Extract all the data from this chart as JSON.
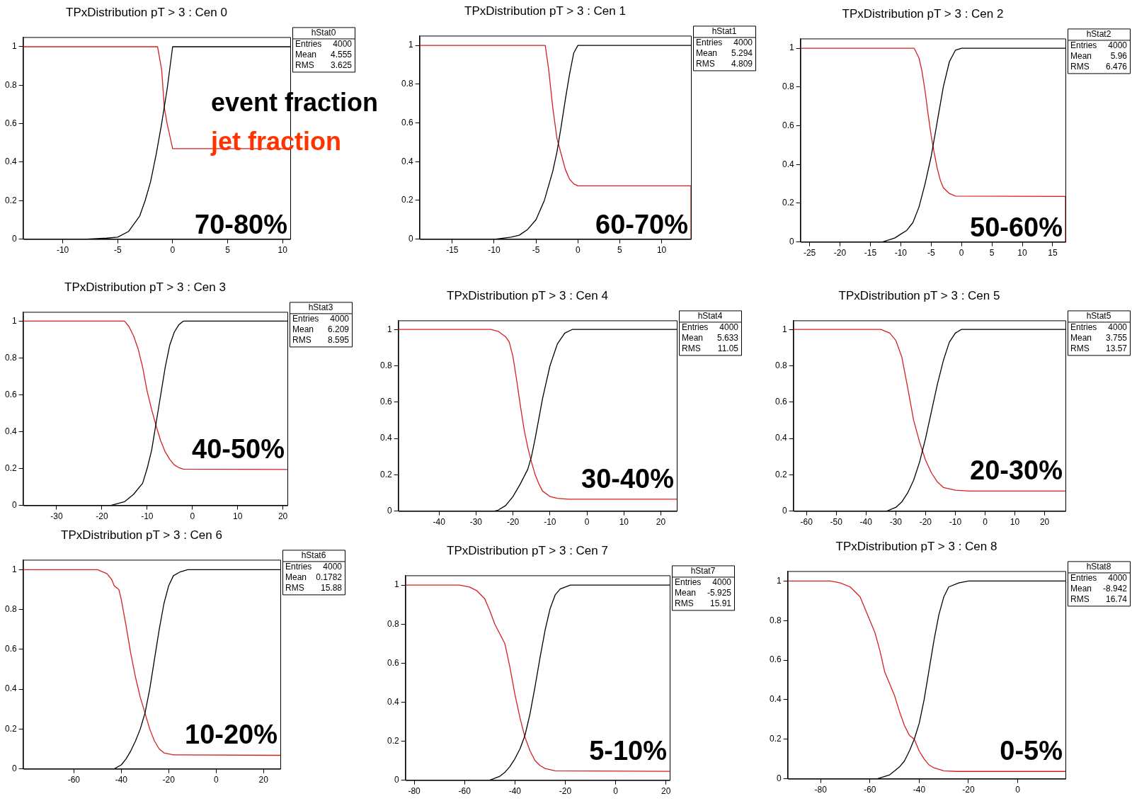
{
  "chart_data": [
    {
      "type": "line",
      "title": "TPxDistribution pT > 3 : Cen 0",
      "xlim": [
        -13.6,
        10.7
      ],
      "xticks": [
        -10,
        -5,
        0,
        5,
        10
      ],
      "ylim": [
        0,
        1.05
      ],
      "yticks": [
        0,
        0.2,
        0.4,
        0.6,
        0.8,
        1
      ],
      "annotations": [
        "hStat0",
        "Entries",
        "4000",
        "Mean",
        "4.555",
        "RMS",
        "3.625",
        "70-80%"
      ],
      "series": [
        {
          "name": "event fraction",
          "color": "#000000",
          "x": [
            -13.6,
            -7.8,
            -6,
            -5,
            -4,
            -3,
            -2.5,
            -2,
            -1.5,
            -1,
            -0.5,
            0,
            10.7
          ],
          "values": [
            0,
            0,
            0.005,
            0.01,
            0.04,
            0.12,
            0.2,
            0.3,
            0.44,
            0.6,
            0.78,
            1,
            1
          ]
        },
        {
          "name": "jet fraction",
          "color": "#d42020",
          "x": [
            -13.6,
            -1.37,
            -1,
            -0.75,
            -0.5,
            0,
            10.7
          ],
          "values": [
            1,
            1,
            0.88,
            0.68,
            0.6,
            0.47,
            0.47
          ]
        }
      ]
    },
    {
      "type": "line",
      "title": "TPxDistribution pT > 3 : Cen 1",
      "xlim": [
        -18.9,
        13.5
      ],
      "xticks": [
        -15,
        -10,
        -5,
        0,
        5,
        10
      ],
      "ylim": [
        0,
        1.05
      ],
      "yticks": [
        0,
        0.2,
        0.4,
        0.6,
        0.8,
        1
      ],
      "annotations": [
        "hStat1",
        "Entries",
        "4000",
        "Mean",
        "5.294",
        "RMS",
        "4.809",
        "60-70%"
      ],
      "series": [
        {
          "color": "#000000",
          "x": [
            -18.9,
            -9.8,
            -8,
            -7,
            -6,
            -5,
            -4,
            -3,
            -2.5,
            -2,
            -1.5,
            -1,
            -0.5,
            0,
            13.5
          ],
          "values": [
            0,
            0,
            0.01,
            0.02,
            0.05,
            0.1,
            0.2,
            0.35,
            0.45,
            0.58,
            0.72,
            0.85,
            0.96,
            1,
            1
          ]
        },
        {
          "color": "#d42020",
          "x": [
            -18.9,
            -3.9,
            -3.5,
            -3,
            -2.5,
            -2,
            -1.5,
            -1,
            -0.5,
            0,
            13.5,
            13.5
          ],
          "values": [
            1,
            1,
            0.88,
            0.68,
            0.52,
            0.44,
            0.36,
            0.31,
            0.285,
            0.275,
            0.275,
            0
          ]
        }
      ]
    },
    {
      "type": "line",
      "title": "TPxDistribution pT > 3 : Cen 2",
      "xlim": [
        -26.5,
        17.1
      ],
      "xticks": [
        -25,
        -20,
        -15,
        -10,
        -5,
        0,
        5,
        10,
        15
      ],
      "ylim": [
        0,
        1.05
      ],
      "yticks": [
        0,
        0.2,
        0.4,
        0.6,
        0.8,
        1
      ],
      "annotations": [
        "hStat2",
        "Entries",
        "4000",
        "Mean",
        "5.96",
        "RMS",
        "6.476",
        "50-60%"
      ],
      "series": [
        {
          "color": "#000000",
          "x": [
            -26.5,
            -13,
            -11,
            -10,
            -9,
            -8,
            -7,
            -6,
            -5,
            -4,
            -3,
            -2,
            -1,
            0,
            17.1
          ],
          "values": [
            0,
            0,
            0.02,
            0.04,
            0.06,
            0.1,
            0.18,
            0.3,
            0.44,
            0.62,
            0.8,
            0.93,
            0.99,
            1,
            1
          ]
        },
        {
          "color": "#d42020",
          "x": [
            -26.5,
            -7.8,
            -7,
            -6.5,
            -6,
            -5.5,
            -5,
            -4.5,
            -4,
            -3.5,
            -3,
            -2,
            -1,
            17.1,
            17.1
          ],
          "values": [
            1,
            1,
            0.95,
            0.88,
            0.78,
            0.66,
            0.55,
            0.46,
            0.38,
            0.32,
            0.28,
            0.25,
            0.237,
            0.235,
            0
          ]
        }
      ]
    },
    {
      "type": "line",
      "title": "TPxDistribution pT > 3 : Cen 3",
      "xlim": [
        -37.4,
        21
      ],
      "xticks": [
        -30,
        -20,
        -10,
        0,
        10,
        20
      ],
      "ylim": [
        0,
        1.05
      ],
      "yticks": [
        0,
        0.2,
        0.4,
        0.6,
        0.8,
        1
      ],
      "annotations": [
        "hStat3",
        "Entries",
        "4000",
        "Mean",
        "6.209",
        "RMS",
        "8.595",
        "40-50%"
      ],
      "series": [
        {
          "color": "#000000",
          "x": [
            -37.4,
            -18,
            -15,
            -13,
            -11,
            -10,
            -9,
            -8,
            -7,
            -6,
            -5,
            -4,
            -3,
            -2,
            21
          ],
          "values": [
            0,
            0,
            0.02,
            0.06,
            0.12,
            0.2,
            0.3,
            0.45,
            0.6,
            0.75,
            0.87,
            0.94,
            0.98,
            1,
            1
          ]
        },
        {
          "color": "#d42020",
          "x": [
            -37.4,
            -15,
            -14,
            -13,
            -12,
            -11,
            -10,
            -9,
            -8,
            -7,
            -6,
            -5,
            -4,
            -3,
            -2,
            21
          ],
          "values": [
            1,
            1,
            0.97,
            0.92,
            0.85,
            0.75,
            0.62,
            0.52,
            0.43,
            0.35,
            0.29,
            0.25,
            0.22,
            0.205,
            0.197,
            0.195
          ]
        }
      ]
    },
    {
      "type": "line",
      "title": "TPxDistribution pT > 3 : Cen 4",
      "xlim": [
        -51,
        24.3
      ],
      "xticks": [
        -40,
        -30,
        -20,
        -10,
        0,
        10,
        20
      ],
      "ylim": [
        0,
        1.05
      ],
      "yticks": [
        0,
        0.2,
        0.4,
        0.6,
        0.8,
        1
      ],
      "annotations": [
        "hStat4",
        "Entries",
        "4000",
        "Mean",
        "5.633",
        "RMS",
        "11.05",
        "30-40%"
      ],
      "series": [
        {
          "color": "#000000",
          "x": [
            -51,
            -25,
            -24,
            -22,
            -20,
            -18,
            -16,
            -15,
            -14,
            -12,
            -10,
            -8,
            -6,
            -4,
            24.3
          ],
          "values": [
            0,
            0,
            0.005,
            0.03,
            0.08,
            0.15,
            0.23,
            0.3,
            0.4,
            0.62,
            0.8,
            0.92,
            0.98,
            1,
            1
          ]
        },
        {
          "color": "#d42020",
          "x": [
            -51,
            -26,
            -24,
            -22,
            -21,
            -20,
            -19,
            -18,
            -17,
            -16,
            -15,
            -14,
            -13,
            -12,
            -10,
            -8,
            -5,
            24.3
          ],
          "values": [
            1,
            1,
            0.99,
            0.96,
            0.93,
            0.85,
            0.72,
            0.58,
            0.45,
            0.35,
            0.27,
            0.2,
            0.15,
            0.11,
            0.08,
            0.07,
            0.065,
            0.065
          ]
        }
      ]
    },
    {
      "type": "line",
      "title": "TPxDistribution pT > 3 : Cen 5",
      "xlim": [
        -64.4,
        27
      ],
      "xticks": [
        -60,
        -50,
        -40,
        -30,
        -20,
        -10,
        0,
        10,
        20
      ],
      "ylim": [
        0,
        1.05
      ],
      "yticks": [
        0,
        0.2,
        0.4,
        0.6,
        0.8,
        1
      ],
      "annotations": [
        "hStat5",
        "Entries",
        "4000",
        "Mean",
        "3.755",
        "RMS",
        "13.57",
        "20-30%"
      ],
      "series": [
        {
          "color": "#000000",
          "x": [
            -64.4,
            -33,
            -30,
            -28,
            -26,
            -24,
            -22,
            -20,
            -18,
            -16,
            -14,
            -12,
            -10,
            -8,
            27
          ],
          "values": [
            0,
            0,
            0.02,
            0.05,
            0.1,
            0.17,
            0.27,
            0.4,
            0.55,
            0.7,
            0.83,
            0.93,
            0.98,
            1,
            1
          ]
        },
        {
          "color": "#d42020",
          "x": [
            -64.4,
            -35,
            -32,
            -30,
            -28,
            -26,
            -24,
            -22,
            -20,
            -18,
            -16,
            -14,
            -10,
            -5,
            27
          ],
          "values": [
            1,
            1,
            0.98,
            0.94,
            0.85,
            0.68,
            0.5,
            0.38,
            0.28,
            0.21,
            0.16,
            0.13,
            0.115,
            0.11,
            0.11
          ]
        }
      ]
    },
    {
      "type": "line",
      "title": "TPxDistribution pT > 3 : Cen 6",
      "xlim": [
        -81.4,
        27.1
      ],
      "xticks": [
        -60,
        -40,
        -20,
        0,
        20
      ],
      "ylim": [
        0,
        1.05
      ],
      "yticks": [
        0,
        0.2,
        0.4,
        0.6,
        0.8,
        1
      ],
      "annotations": [
        "hStat6",
        "Entries",
        "4000",
        "Mean",
        "0.1782",
        "RMS",
        "15.88",
        "10-20%"
      ],
      "series": [
        {
          "color": "#000000",
          "x": [
            -81.4,
            -43,
            -40,
            -38,
            -36,
            -34,
            -32,
            -30,
            -28,
            -26,
            -24,
            -22,
            -20,
            -18,
            -15,
            -12,
            27.1
          ],
          "values": [
            0,
            0,
            0.02,
            0.05,
            0.09,
            0.14,
            0.2,
            0.28,
            0.4,
            0.55,
            0.7,
            0.83,
            0.92,
            0.97,
            0.99,
            1,
            1
          ]
        },
        {
          "color": "#d42020",
          "x": [
            -81.4,
            -50,
            -46,
            -44,
            -43,
            -41,
            -40,
            -38,
            -36,
            -34,
            -32,
            -30,
            -28,
            -26,
            -24,
            -22,
            -18,
            27.1
          ],
          "values": [
            1,
            1,
            0.98,
            0.95,
            0.92,
            0.9,
            0.85,
            0.72,
            0.58,
            0.46,
            0.36,
            0.28,
            0.2,
            0.14,
            0.1,
            0.08,
            0.07,
            0.068
          ]
        }
      ]
    },
    {
      "type": "line",
      "title": "TPxDistribution pT > 3 : Cen 7",
      "xlim": [
        -83.5,
        21.5
      ],
      "xticks": [
        -80,
        -60,
        -40,
        -20,
        0,
        20
      ],
      "ylim": [
        0,
        1.05
      ],
      "yticks": [
        0,
        0.2,
        0.4,
        0.6,
        0.8,
        1
      ],
      "annotations": [
        "hStat7",
        "Entries",
        "4000",
        "Mean",
        "-5.925",
        "RMS",
        "15.91",
        "5-10%"
      ],
      "series": [
        {
          "color": "#000000",
          "x": [
            -83.5,
            -50,
            -46,
            -44,
            -42,
            -40,
            -38,
            -36,
            -34,
            -32,
            -30,
            -28,
            -26,
            -24,
            -22,
            -18,
            21.5
          ],
          "values": [
            0,
            0,
            0.02,
            0.04,
            0.07,
            0.11,
            0.16,
            0.23,
            0.34,
            0.48,
            0.63,
            0.77,
            0.88,
            0.95,
            0.98,
            1,
            1
          ]
        },
        {
          "color": "#d42020",
          "x": [
            -83.5,
            -62,
            -58,
            -55,
            -52,
            -50,
            -48,
            -46,
            -44,
            -42,
            -40,
            -38,
            -36,
            -34,
            -32,
            -30,
            -28,
            -24,
            21.5
          ],
          "values": [
            1,
            1,
            0.99,
            0.97,
            0.93,
            0.87,
            0.8,
            0.75,
            0.7,
            0.58,
            0.44,
            0.32,
            0.22,
            0.15,
            0.1,
            0.075,
            0.06,
            0.048,
            0.045
          ]
        }
      ]
    },
    {
      "type": "line",
      "title": "TPxDistribution pT > 3 : Cen 8",
      "xlim": [
        -93.4,
        19.4
      ],
      "xticks": [
        -80,
        -60,
        -40,
        -20,
        0
      ],
      "ylim": [
        0,
        1.05
      ],
      "yticks": [
        0,
        0.2,
        0.4,
        0.6,
        0.8,
        1
      ],
      "annotations": [
        "hStat8",
        "Entries",
        "4000",
        "Mean",
        "-8.942",
        "RMS",
        "16.74",
        "0-5%"
      ],
      "series": [
        {
          "color": "#000000",
          "x": [
            -93.4,
            -57,
            -52,
            -50,
            -48,
            -46,
            -44,
            -42,
            -40,
            -38,
            -36,
            -34,
            -32,
            -30,
            -28,
            -24,
            -20,
            19.4
          ],
          "values": [
            0,
            0,
            0.02,
            0.04,
            0.06,
            0.09,
            0.14,
            0.2,
            0.28,
            0.4,
            0.55,
            0.7,
            0.83,
            0.92,
            0.97,
            0.99,
            1,
            1
          ]
        },
        {
          "color": "#d42020",
          "x": [
            -93.4,
            -76,
            -72,
            -68,
            -64,
            -62,
            -60,
            -58,
            -56,
            -54,
            -52,
            -50,
            -48,
            -46,
            -44,
            -42,
            -40,
            -38,
            -36,
            -34,
            -30,
            -25,
            19.4
          ],
          "values": [
            1,
            1,
            0.99,
            0.97,
            0.92,
            0.86,
            0.8,
            0.74,
            0.65,
            0.54,
            0.48,
            0.42,
            0.34,
            0.27,
            0.22,
            0.2,
            0.14,
            0.1,
            0.07,
            0.055,
            0.04,
            0.037,
            0.037
          ]
        }
      ]
    }
  ]
}
